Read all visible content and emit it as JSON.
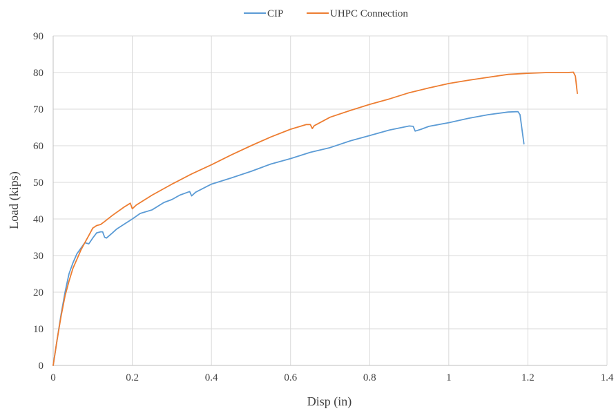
{
  "chart_data": {
    "type": "line",
    "title": "",
    "xlabel": "Disp (in)",
    "ylabel": "Load (kips)",
    "xlim": [
      0,
      1.4
    ],
    "ylim": [
      0,
      90
    ],
    "x_ticks": [
      "0",
      "0.2",
      "0.4",
      "0.6",
      "0.8",
      "1",
      "1.2",
      "1.4"
    ],
    "y_ticks": [
      "0",
      "10",
      "20",
      "30",
      "40",
      "50",
      "60",
      "70",
      "80",
      "90"
    ],
    "grid": true,
    "legend_position": "top-center",
    "series": [
      {
        "name": "CIP",
        "color": "#5B9BD5",
        "x": [
          0,
          0.01,
          0.02,
          0.03,
          0.04,
          0.05,
          0.06,
          0.07,
          0.08,
          0.09,
          0.1,
          0.11,
          0.12,
          0.125,
          0.13,
          0.135,
          0.15,
          0.16,
          0.18,
          0.2,
          0.22,
          0.25,
          0.28,
          0.3,
          0.32,
          0.34,
          0.345,
          0.35,
          0.36,
          0.4,
          0.45,
          0.5,
          0.55,
          0.6,
          0.65,
          0.7,
          0.75,
          0.8,
          0.85,
          0.9,
          0.91,
          0.915,
          0.93,
          0.95,
          1.0,
          1.05,
          1.1,
          1.15,
          1.17,
          1.175,
          1.18,
          1.19
        ],
        "y": [
          0,
          7,
          14,
          20,
          25,
          28,
          30.5,
          32,
          33.5,
          33.2,
          34.8,
          36.2,
          36.5,
          36.5,
          35,
          34.8,
          36.2,
          37.2,
          38.6,
          40,
          41.5,
          42.5,
          44.5,
          45.3,
          46.5,
          47.3,
          47.5,
          46.3,
          47.3,
          49.5,
          51.2,
          53,
          55,
          56.5,
          58.2,
          59.5,
          61.3,
          62.8,
          64.3,
          65.4,
          65.3,
          64,
          64.5,
          65.3,
          66.3,
          67.5,
          68.5,
          69.2,
          69.3,
          69.3,
          68.5,
          60.5
        ]
      },
      {
        "name": "UHPC Connection",
        "color": "#ED7D31",
        "x": [
          0,
          0.01,
          0.02,
          0.03,
          0.04,
          0.05,
          0.06,
          0.07,
          0.08,
          0.09,
          0.1,
          0.11,
          0.12,
          0.13,
          0.15,
          0.18,
          0.195,
          0.2,
          0.21,
          0.25,
          0.3,
          0.35,
          0.4,
          0.45,
          0.5,
          0.55,
          0.6,
          0.64,
          0.65,
          0.655,
          0.66,
          0.7,
          0.75,
          0.8,
          0.85,
          0.9,
          0.95,
          1.0,
          1.05,
          1.1,
          1.15,
          1.2,
          1.25,
          1.3,
          1.315,
          1.32,
          1.325
        ],
        "y": [
          0,
          7,
          13.5,
          19,
          23,
          26.5,
          29,
          31.5,
          33.5,
          35.5,
          37.5,
          38.2,
          38.5,
          39.3,
          41,
          43.3,
          44.3,
          42.8,
          43.8,
          46.5,
          49.5,
          52.3,
          54.8,
          57.5,
          60,
          62.4,
          64.5,
          65.8,
          65.8,
          64.7,
          65.5,
          67.8,
          69.6,
          71.3,
          72.8,
          74.5,
          75.8,
          77,
          77.9,
          78.7,
          79.5,
          79.8,
          80,
          80,
          80.1,
          79,
          74.3
        ]
      }
    ]
  }
}
